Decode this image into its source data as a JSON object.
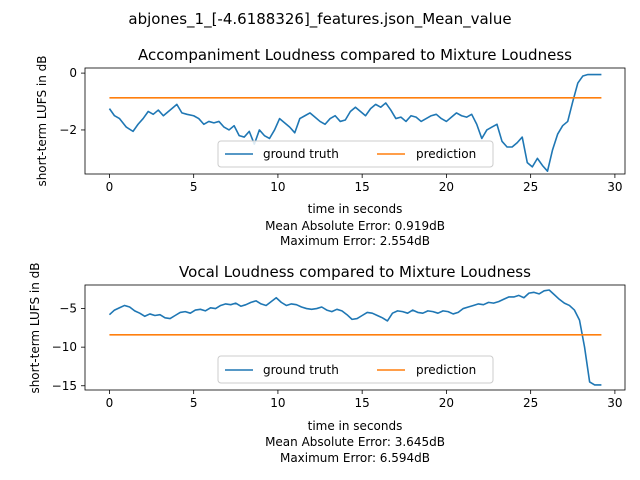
{
  "figure": {
    "suptitle": "abjones_1_[-4.6188326]_features.json_Mean_value"
  },
  "colors": {
    "ground_truth": "#1f77b4",
    "prediction": "#ff7f0e"
  },
  "chart_data": [
    {
      "type": "line",
      "title": "Accompaniment Loudness compared to Mixture Loudness",
      "xlabel": "time in seconds",
      "ylabel": "short-term LUFS in dB",
      "footer": [
        "Mean Absolute Error: 0.919dB",
        "Maximum Error: 2.554dB"
      ],
      "xlim": [
        -1.45,
        30.6
      ],
      "ylim": [
        -3.55,
        0.18
      ],
      "xticks": [
        0,
        5,
        10,
        15,
        20,
        25,
        30
      ],
      "yticks": [
        0,
        -2
      ],
      "ytick_labels": [
        "0",
        "−2"
      ],
      "legend": {
        "placement": "lower center",
        "entries": [
          "ground truth",
          "prediction"
        ]
      },
      "series": [
        {
          "name": "ground truth",
          "color_key": "ground_truth",
          "x": [
            0,
            0.3,
            0.6,
            1.0,
            1.4,
            1.7,
            2.0,
            2.3,
            2.6,
            2.9,
            3.2,
            3.5,
            3.8,
            4.0,
            4.3,
            4.6,
            5.0,
            5.3,
            5.6,
            5.9,
            6.2,
            6.5,
            6.8,
            7.1,
            7.4,
            7.7,
            8.0,
            8.3,
            8.6,
            8.9,
            9.2,
            9.5,
            9.8,
            10.1,
            10.4,
            10.7,
            11.0,
            11.3,
            11.6,
            11.9,
            12.2,
            12.5,
            12.8,
            13.1,
            13.4,
            13.7,
            14.0,
            14.3,
            14.6,
            14.9,
            15.2,
            15.5,
            15.8,
            16.1,
            16.4,
            16.7,
            17.0,
            17.3,
            17.6,
            17.9,
            18.2,
            18.5,
            18.8,
            19.1,
            19.4,
            19.7,
            20.0,
            20.3,
            20.6,
            20.9,
            21.2,
            21.5,
            21.8,
            22.1,
            22.4,
            22.7,
            23.0,
            23.3,
            23.6,
            23.9,
            24.2,
            24.5,
            24.8,
            25.1,
            25.4,
            25.7,
            26.0,
            26.3,
            26.6,
            26.9,
            27.2,
            27.5,
            27.8,
            28.1,
            28.4,
            28.7,
            29.0,
            29.2
          ],
          "values": [
            -1.25,
            -1.5,
            -1.6,
            -1.9,
            -2.05,
            -1.8,
            -1.6,
            -1.35,
            -1.45,
            -1.3,
            -1.5,
            -1.35,
            -1.2,
            -1.1,
            -1.4,
            -1.45,
            -1.5,
            -1.6,
            -1.8,
            -1.7,
            -1.75,
            -1.7,
            -1.9,
            -2.0,
            -1.85,
            -2.2,
            -2.25,
            -2.05,
            -2.5,
            -2.0,
            -2.2,
            -2.3,
            -2.0,
            -1.6,
            -1.75,
            -1.9,
            -2.1,
            -1.6,
            -1.5,
            -1.4,
            -1.55,
            -1.7,
            -1.8,
            -1.6,
            -1.5,
            -1.7,
            -1.65,
            -1.35,
            -1.2,
            -1.35,
            -1.5,
            -1.25,
            -1.1,
            -1.2,
            -1.05,
            -1.3,
            -1.6,
            -1.55,
            -1.7,
            -1.5,
            -1.55,
            -1.7,
            -1.6,
            -1.5,
            -1.45,
            -1.6,
            -1.7,
            -1.55,
            -1.4,
            -1.5,
            -1.55,
            -1.45,
            -1.8,
            -2.3,
            -2.0,
            -1.9,
            -1.8,
            -2.4,
            -2.6,
            -2.6,
            -2.45,
            -2.25,
            -3.15,
            -3.3,
            -3.0,
            -3.25,
            -3.45,
            -2.7,
            -2.15,
            -1.85,
            -1.7,
            -1.0,
            -0.35,
            -0.1,
            -0.05,
            -0.05,
            -0.05,
            -0.05
          ]
        },
        {
          "name": "prediction",
          "color_key": "prediction",
          "x": [
            0,
            29.2
          ],
          "values": [
            -0.87,
            -0.87
          ]
        }
      ]
    },
    {
      "type": "line",
      "title": "Vocal Loudness compared to Mixture Loudness",
      "xlabel": "time in seconds",
      "ylabel": "short-term LUFS in dB",
      "footer": [
        "Mean Absolute Error: 3.645dB",
        "Maximum Error: 6.594dB"
      ],
      "xlim": [
        -1.45,
        30.6
      ],
      "ylim": [
        -15.55,
        -1.95
      ],
      "xticks": [
        0,
        5,
        10,
        15,
        20,
        25,
        30
      ],
      "yticks": [
        -5,
        -10,
        -15
      ],
      "ytick_labels": [
        "−5",
        "−10",
        "−15"
      ],
      "legend": {
        "placement": "lower center",
        "entries": [
          "ground truth",
          "prediction"
        ]
      },
      "series": [
        {
          "name": "ground truth",
          "color_key": "ground_truth",
          "x": [
            0,
            0.3,
            0.6,
            0.9,
            1.2,
            1.5,
            1.8,
            2.1,
            2.4,
            2.7,
            3.0,
            3.3,
            3.6,
            3.9,
            4.2,
            4.5,
            4.8,
            5.1,
            5.4,
            5.7,
            6.0,
            6.3,
            6.6,
            6.9,
            7.2,
            7.5,
            7.8,
            8.1,
            8.4,
            8.7,
            9.0,
            9.3,
            9.6,
            9.9,
            10.2,
            10.5,
            10.8,
            11.1,
            11.4,
            11.7,
            12.0,
            12.3,
            12.6,
            12.9,
            13.2,
            13.5,
            13.8,
            14.1,
            14.4,
            14.7,
            15.0,
            15.3,
            15.6,
            15.9,
            16.2,
            16.5,
            16.8,
            17.1,
            17.4,
            17.7,
            18.0,
            18.3,
            18.6,
            18.9,
            19.2,
            19.5,
            19.8,
            20.1,
            20.4,
            20.7,
            21.0,
            21.3,
            21.6,
            21.9,
            22.2,
            22.5,
            22.8,
            23.1,
            23.4,
            23.7,
            24.0,
            24.3,
            24.6,
            24.9,
            25.2,
            25.5,
            25.8,
            26.1,
            26.4,
            26.7,
            27.0,
            27.3,
            27.6,
            27.9,
            28.2,
            28.5,
            28.8,
            29.1,
            29.2
          ],
          "values": [
            -5.8,
            -5.2,
            -4.9,
            -4.6,
            -4.8,
            -5.3,
            -5.6,
            -6.0,
            -5.7,
            -5.9,
            -5.8,
            -6.2,
            -6.3,
            -5.9,
            -5.5,
            -5.4,
            -5.6,
            -5.2,
            -5.1,
            -5.3,
            -4.9,
            -5.0,
            -4.6,
            -4.4,
            -4.5,
            -4.3,
            -4.7,
            -4.5,
            -4.2,
            -4.0,
            -4.4,
            -4.6,
            -4.1,
            -3.6,
            -4.2,
            -4.6,
            -4.4,
            -4.5,
            -4.8,
            -5.0,
            -5.1,
            -5.0,
            -4.8,
            -5.2,
            -5.4,
            -5.1,
            -5.3,
            -5.8,
            -6.4,
            -6.3,
            -5.9,
            -5.5,
            -5.6,
            -5.9,
            -6.2,
            -6.6,
            -5.6,
            -5.3,
            -5.4,
            -5.6,
            -5.2,
            -5.5,
            -5.6,
            -5.3,
            -5.4,
            -5.6,
            -5.3,
            -5.4,
            -5.7,
            -5.5,
            -5.0,
            -4.8,
            -4.6,
            -4.4,
            -4.5,
            -4.2,
            -4.3,
            -4.1,
            -3.8,
            -3.5,
            -3.5,
            -3.3,
            -3.6,
            -3.0,
            -2.9,
            -3.1,
            -2.7,
            -2.6,
            -3.2,
            -3.8,
            -4.3,
            -4.6,
            -5.2,
            -6.5,
            -10.0,
            -14.5,
            -14.9,
            -14.9,
            -14.9
          ]
        },
        {
          "name": "prediction",
          "color_key": "prediction",
          "x": [
            0,
            29.2
          ],
          "values": [
            -8.4,
            -8.4
          ]
        }
      ]
    }
  ]
}
